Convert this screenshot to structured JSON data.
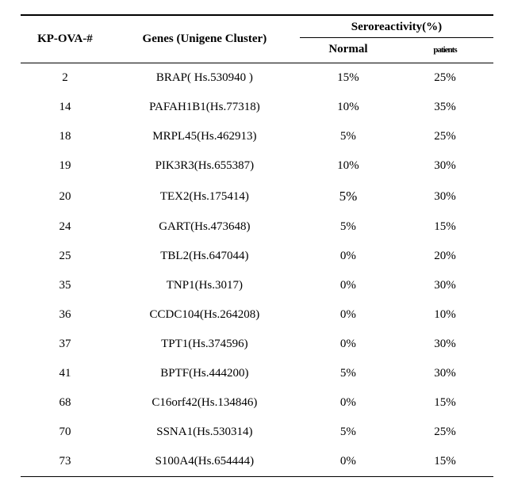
{
  "header": {
    "kp": "KP-OVA-#",
    "genes": "Genes  (Unigene  Cluster)",
    "group": "Seroreactivity(%)",
    "normal": "Normal",
    "patients": "patients"
  },
  "rows": [
    {
      "id": "2",
      "gene": "BRAP(  Hs.530940  )",
      "normal": "15%",
      "pat": "25%",
      "normal_emph": false
    },
    {
      "id": "14",
      "gene": "PAFAH1B1(Hs.77318)",
      "normal": "10%",
      "pat": "35%",
      "normal_emph": false
    },
    {
      "id": "18",
      "gene": "MRPL45(Hs.462913)",
      "normal": "5%",
      "pat": "25%",
      "normal_emph": false
    },
    {
      "id": "19",
      "gene": "PIK3R3(Hs.655387)",
      "normal": "10%",
      "pat": "30%",
      "normal_emph": false
    },
    {
      "id": "20",
      "gene": "TEX2(Hs.175414)",
      "normal": "5%",
      "pat": "30%",
      "normal_emph": true
    },
    {
      "id": "24",
      "gene": "GART(Hs.473648)",
      "normal": "5%",
      "pat": "15%",
      "normal_emph": false
    },
    {
      "id": "25",
      "gene": "TBL2(Hs.647044)",
      "normal": "0%",
      "pat": "20%",
      "normal_emph": false
    },
    {
      "id": "35",
      "gene": "TNP1(Hs.3017)",
      "normal": "0%",
      "pat": "30%",
      "normal_emph": false
    },
    {
      "id": "36",
      "gene": "CCDC104(Hs.264208)",
      "normal": "0%",
      "pat": "10%",
      "normal_emph": false
    },
    {
      "id": "37",
      "gene": "TPT1(Hs.374596)",
      "normal": "0%",
      "pat": "30%",
      "normal_emph": false
    },
    {
      "id": "41",
      "gene": "BPTF(Hs.444200)",
      "normal": "5%",
      "pat": "30%",
      "normal_emph": false
    },
    {
      "id": "68",
      "gene": "C16orf42(Hs.134846)",
      "normal": "0%",
      "pat": "15%",
      "normal_emph": false
    },
    {
      "id": "70",
      "gene": "SSNA1(Hs.530314)",
      "normal": "5%",
      "pat": "25%",
      "normal_emph": false
    },
    {
      "id": "73",
      "gene": "S100A4(Hs.654444)",
      "normal": "0%",
      "pat": "15%",
      "normal_emph": false
    }
  ]
}
